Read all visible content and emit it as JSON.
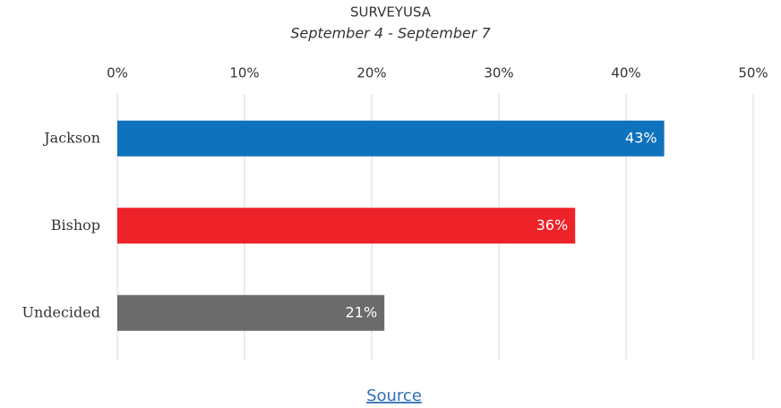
{
  "chart_data": {
    "type": "bar",
    "orientation": "horizontal",
    "title": "SURVEYUSA",
    "subtitle": "September 4 - September 7",
    "categories": [
      "Jackson",
      "Bishop",
      "Undecided"
    ],
    "values": [
      43,
      36,
      21
    ],
    "value_labels": [
      "43%",
      "36%",
      "21%"
    ],
    "colors": [
      "#0f72bd",
      "#ee2229",
      "#6b6b6b"
    ],
    "xlim": [
      0,
      50
    ],
    "xticks": [
      {
        "value": 0,
        "label": "0%"
      },
      {
        "value": 10,
        "label": "10%"
      },
      {
        "value": 20,
        "label": "20%"
      },
      {
        "value": 30,
        "label": "30%"
      },
      {
        "value": 40,
        "label": "40%"
      },
      {
        "value": 50,
        "label": "50%"
      }
    ],
    "grid": true
  },
  "footer": {
    "link": "Source"
  }
}
